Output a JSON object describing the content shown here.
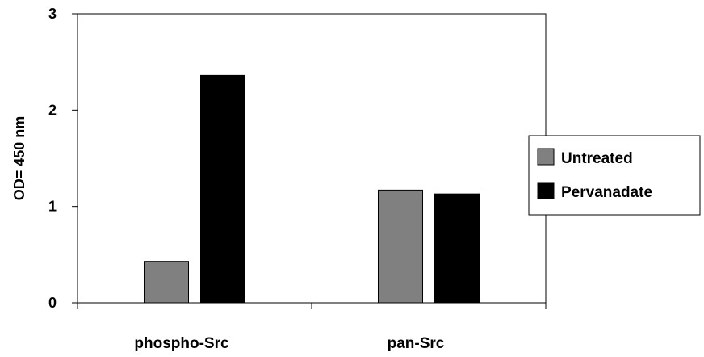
{
  "chart_data": {
    "type": "bar",
    "title": "",
    "xlabel": "",
    "ylabel": "OD= 450 nm",
    "categories": [
      "phospho-Src",
      "pan-Src"
    ],
    "series": [
      {
        "name": "Untreated",
        "values": [
          0.43,
          1.17
        ],
        "color": "#808080"
      },
      {
        "name": "Pervanadate",
        "values": [
          2.36,
          1.13
        ],
        "color": "#000000"
      }
    ],
    "ylim": [
      0,
      3
    ],
    "yticks": [
      0,
      1,
      2,
      3
    ],
    "grid": false,
    "legend": "right"
  }
}
